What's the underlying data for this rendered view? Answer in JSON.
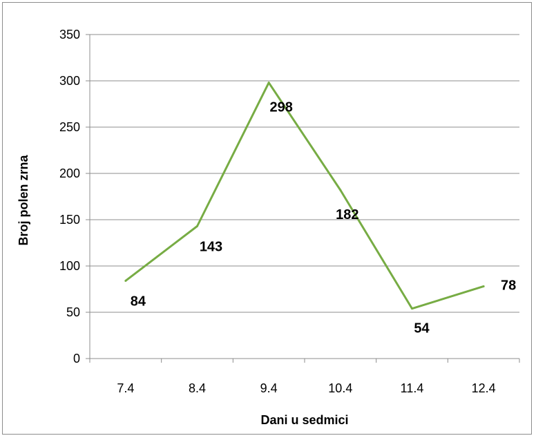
{
  "chart_data": {
    "type": "line",
    "title": "",
    "xlabel": "Dani u sedmici",
    "ylabel": "Broj polen zrna",
    "categories": [
      "7.4",
      "8.4",
      "9.4",
      "10.4",
      "11.4",
      "12.4"
    ],
    "series": [
      {
        "values": [
          84,
          143,
          298,
          182,
          54,
          78
        ],
        "color": "#77ac44"
      }
    ],
    "data_labels": [
      "84",
      "143",
      "298",
      "182",
      "54",
      "78"
    ],
    "ylim": [
      0,
      350
    ],
    "yticks": [
      "0",
      "50",
      "100",
      "150",
      "200",
      "250",
      "300",
      "350"
    ],
    "grid": true,
    "legend": "none"
  }
}
